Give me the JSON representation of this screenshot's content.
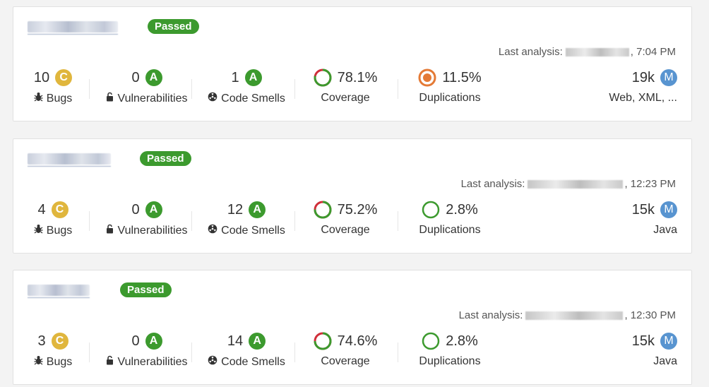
{
  "colors": {
    "passed": "#3c9a2e",
    "rating_a": "#3c9a2e",
    "rating_c": "#e0b63d",
    "size_m": "#5894d0",
    "coverage_green": "#3c9a2e",
    "coverage_red": "#d02f3a",
    "duplication_orange": "#e47a36"
  },
  "labels": {
    "bugs": "Bugs",
    "vulnerabilities": "Vulnerabilities",
    "code_smells": "Code Smells",
    "coverage": "Coverage",
    "duplications": "Duplications",
    "last_analysis": "Last analysis:"
  },
  "projects": [
    {
      "status": "Passed",
      "analysis_time": ", 7:04 PM",
      "bugs": "10",
      "bugs_rating": "C",
      "vulns": "0",
      "vulns_rating": "A",
      "smells": "1",
      "smells_rating": "A",
      "coverage": "78.1%",
      "coverage_fraction": 0.781,
      "duplications": "11.5%",
      "duplications_level": "warning",
      "size": "19k",
      "size_rating": "M",
      "languages": "Web, XML, ..."
    },
    {
      "status": "Passed",
      "analysis_time": ", 12:23 PM",
      "bugs": "4",
      "bugs_rating": "C",
      "vulns": "0",
      "vulns_rating": "A",
      "smells": "12",
      "smells_rating": "A",
      "coverage": "75.2%",
      "coverage_fraction": 0.752,
      "duplications": "2.8%",
      "duplications_level": "ok",
      "size": "15k",
      "size_rating": "M",
      "languages": "Java"
    },
    {
      "status": "Passed",
      "analysis_time": ", 12:30 PM",
      "bugs": "3",
      "bugs_rating": "C",
      "vulns": "0",
      "vulns_rating": "A",
      "smells": "14",
      "smells_rating": "A",
      "coverage": "74.6%",
      "coverage_fraction": 0.746,
      "duplications": "2.8%",
      "duplications_level": "ok",
      "size": "15k",
      "size_rating": "M",
      "languages": "Java"
    }
  ]
}
